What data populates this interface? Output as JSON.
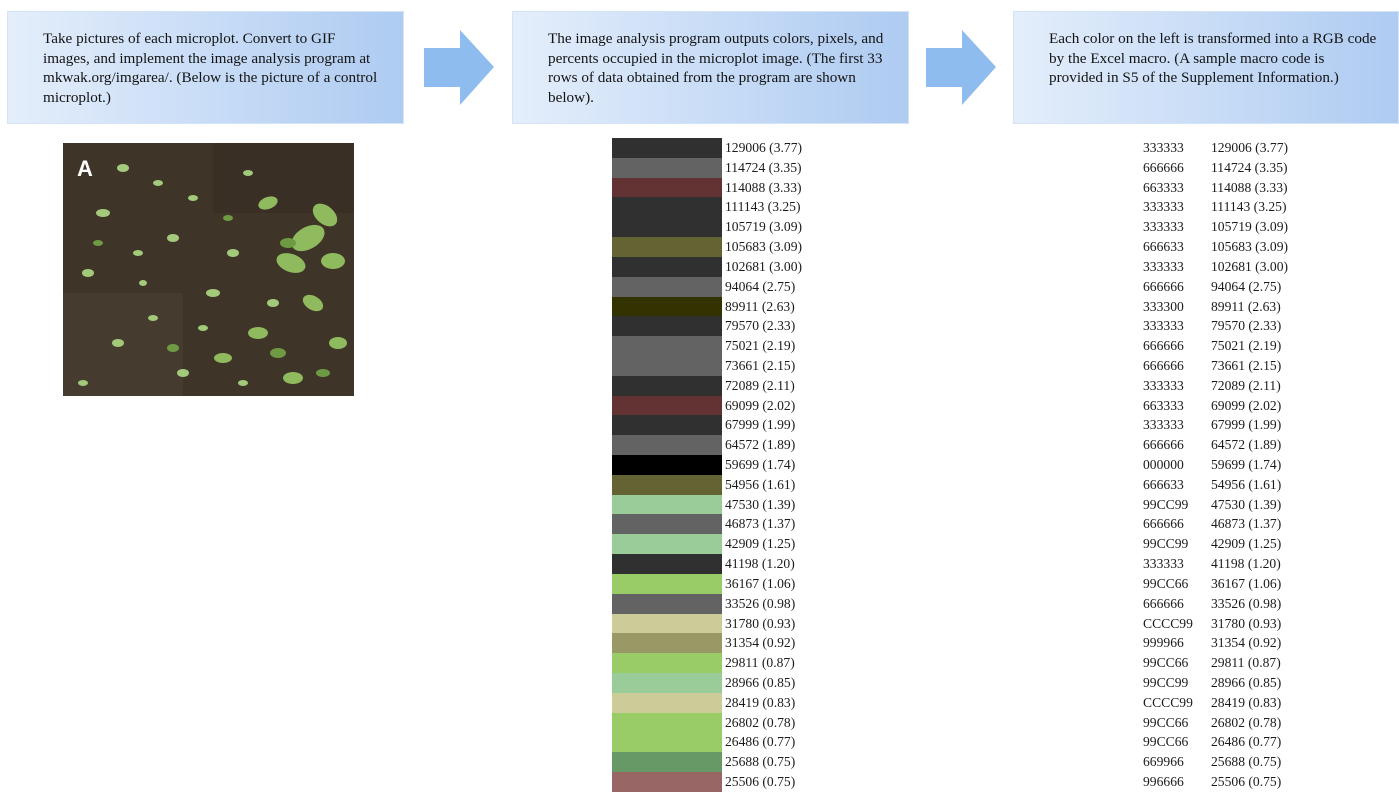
{
  "steps": [
    {
      "text": "Take pictures of each microplot.  Convert to GIF images,  and implement  the image analysis program at mkwak.org/imgarea/. (Below is the picture of a control microplot.)"
    },
    {
      "text": "The image analysis program outputs colors, pixels, and percents occupied in the microplot image. (The first 33 rows of data obtained from the program are shown below)."
    },
    {
      "text": "Each color  on the left is transformed into a RGB code by the Excel macro. (A sample macro code is provided  in S5 of the Supplement  Information.)"
    }
  ],
  "photo": {
    "label": "A"
  },
  "colors": {
    "box_light": "#e4eefb",
    "box_dark": "#aecbf1",
    "arrow": "#8fbcef"
  },
  "rows": [
    {
      "swatch": "#303030",
      "pixels": "129006 (3.77)",
      "code": "333333"
    },
    {
      "swatch": "#636363",
      "pixels": "114724 (3.35)",
      "code": "666666"
    },
    {
      "swatch": "#633333",
      "pixels": "114088 (3.33)",
      "code": "663333"
    },
    {
      "swatch": "#303030",
      "pixels": "111143 (3.25)",
      "code": "333333"
    },
    {
      "swatch": "#303030",
      "pixels": "105719 (3.09)",
      "code": "333333"
    },
    {
      "swatch": "#636333",
      "pixels": "105683 (3.09)",
      "code": "666633"
    },
    {
      "swatch": "#303030",
      "pixels": "102681 (3.00)",
      "code": "333333"
    },
    {
      "swatch": "#636363",
      "pixels": "94064 (2.75)",
      "code": "666666"
    },
    {
      "swatch": "#333300",
      "pixels": "89911 (2.63)",
      "code": "333300"
    },
    {
      "swatch": "#303030",
      "pixels": "79570 (2.33)",
      "code": "333333"
    },
    {
      "swatch": "#636363",
      "pixels": "75021 (2.19)",
      "code": "666666"
    },
    {
      "swatch": "#636363",
      "pixels": "73661 (2.15)",
      "code": "666666"
    },
    {
      "swatch": "#303030",
      "pixels": "72089 (2.11)",
      "code": "333333"
    },
    {
      "swatch": "#633333",
      "pixels": "69099 (2.02)",
      "code": "663333"
    },
    {
      "swatch": "#303030",
      "pixels": "67999 (1.99)",
      "code": "333333"
    },
    {
      "swatch": "#636363",
      "pixels": "64572 (1.89)",
      "code": "666666"
    },
    {
      "swatch": "#000000",
      "pixels": "59699 (1.74)",
      "code": "000000"
    },
    {
      "swatch": "#636333",
      "pixels": "54956 (1.61)",
      "code": "666633"
    },
    {
      "swatch": "#99cc99",
      "pixels": "47530 (1.39)",
      "code": "99CC99"
    },
    {
      "swatch": "#636363",
      "pixels": "46873 (1.37)",
      "code": "666666"
    },
    {
      "swatch": "#99cc99",
      "pixels": "42909 (1.25)",
      "code": "99CC99"
    },
    {
      "swatch": "#303030",
      "pixels": "41198 (1.20)",
      "code": "333333"
    },
    {
      "swatch": "#99cc66",
      "pixels": "36167 (1.06)",
      "code": "99CC66"
    },
    {
      "swatch": "#636363",
      "pixels": "33526 (0.98)",
      "code": "666666"
    },
    {
      "swatch": "#cccc99",
      "pixels": "31780 (0.93)",
      "code": "CCCC99"
    },
    {
      "swatch": "#999966",
      "pixels": "31354 (0.92)",
      "code": "999966"
    },
    {
      "swatch": "#99cc66",
      "pixels": "29811 (0.87)",
      "code": "99CC66"
    },
    {
      "swatch": "#99cc99",
      "pixels": "28966 (0.85)",
      "code": "99CC99"
    },
    {
      "swatch": "#cccc99",
      "pixels": "28419 (0.83)",
      "code": "CCCC99"
    },
    {
      "swatch": "#99cc66",
      "pixels": "26802 (0.78)",
      "code": "99CC66"
    },
    {
      "swatch": "#99cc66",
      "pixels": "26486 (0.77)",
      "code": "99CC66"
    },
    {
      "swatch": "#669966",
      "pixels": "25688 (0.75)",
      "code": "669966"
    },
    {
      "swatch": "#996666",
      "pixels": "25506 (0.75)",
      "code": "996666"
    }
  ]
}
